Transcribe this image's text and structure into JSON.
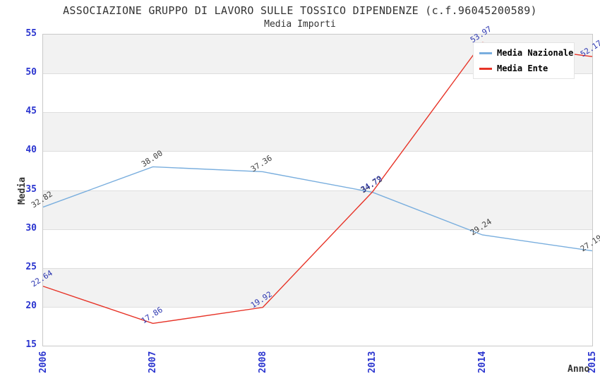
{
  "chart": {
    "title": "ASSOCIAZIONE GRUPPO DI LAVORO SULLE TOSSICO DIPENDENZE (c.f.96045200589)",
    "subtitle": "Media Importi",
    "ylabel": "Media",
    "xlabel": "Anno"
  },
  "chart_data": {
    "type": "line",
    "title": "ASSOCIAZIONE GRUPPO DI LAVORO SULLE TOSSICO DIPENDENZE (c.f.96045200589)",
    "subtitle": "Media Importi",
    "xlabel": "Anno",
    "ylabel": "Media",
    "categories": [
      "2006",
      "2007",
      "2008",
      "2013",
      "2014",
      "2015"
    ],
    "series": [
      {
        "name": "Media Nazionale",
        "color": "#79aede",
        "label_color": "#3f3f3f",
        "values": [
          32.82,
          38.0,
          37.36,
          34.72,
          29.24,
          27.19
        ]
      },
      {
        "name": "Media Ente",
        "color": "#e73327",
        "label_color": "#2b35b0",
        "values": [
          22.64,
          17.86,
          19.92,
          34.79,
          53.97,
          52.17
        ]
      }
    ],
    "ylim": [
      15,
      55
    ],
    "yticks": [
      15,
      20,
      25,
      30,
      35,
      40,
      45,
      50,
      55
    ],
    "ytick_step": 5,
    "value_label_decimals": 2,
    "grid": "horizontal",
    "band_colors": [
      "#f2f2f2",
      "#ffffff"
    ],
    "axis_tick_color": "#2b35cf",
    "legend_position": "top-right"
  }
}
